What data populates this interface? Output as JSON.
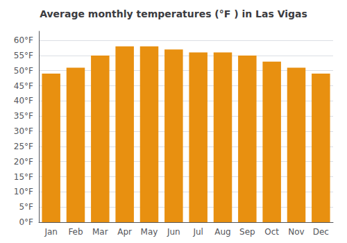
{
  "chart_data": {
    "type": "bar",
    "title": "Average monthly temperatures (°F ) in Las Vigas",
    "categories": [
      "Jan",
      "Feb",
      "Mar",
      "Apr",
      "May",
      "Jun",
      "Jul",
      "Aug",
      "Sep",
      "Oct",
      "Nov",
      "Dec"
    ],
    "values": [
      49,
      51,
      55,
      58,
      58,
      57,
      56,
      56,
      55,
      53,
      51,
      49
    ],
    "color": "#E89010",
    "ylim": [
      0,
      63
    ],
    "yticks": [
      {
        "value": 0,
        "label": "0°F"
      },
      {
        "value": 5,
        "label": "5°F"
      },
      {
        "value": 10,
        "label": "10°F"
      },
      {
        "value": 15,
        "label": "15°F"
      },
      {
        "value": 20,
        "label": "20°F"
      },
      {
        "value": 25,
        "label": "25°F"
      },
      {
        "value": 30,
        "label": "30°F"
      },
      {
        "value": 35,
        "label": "35°F"
      },
      {
        "value": 40,
        "label": "40°F"
      },
      {
        "value": 45,
        "label": "45°F"
      },
      {
        "value": 50,
        "label": "50°F"
      },
      {
        "value": 55,
        "label": "55°F"
      },
      {
        "value": 60,
        "label": "60°F"
      }
    ],
    "grid": true
  }
}
